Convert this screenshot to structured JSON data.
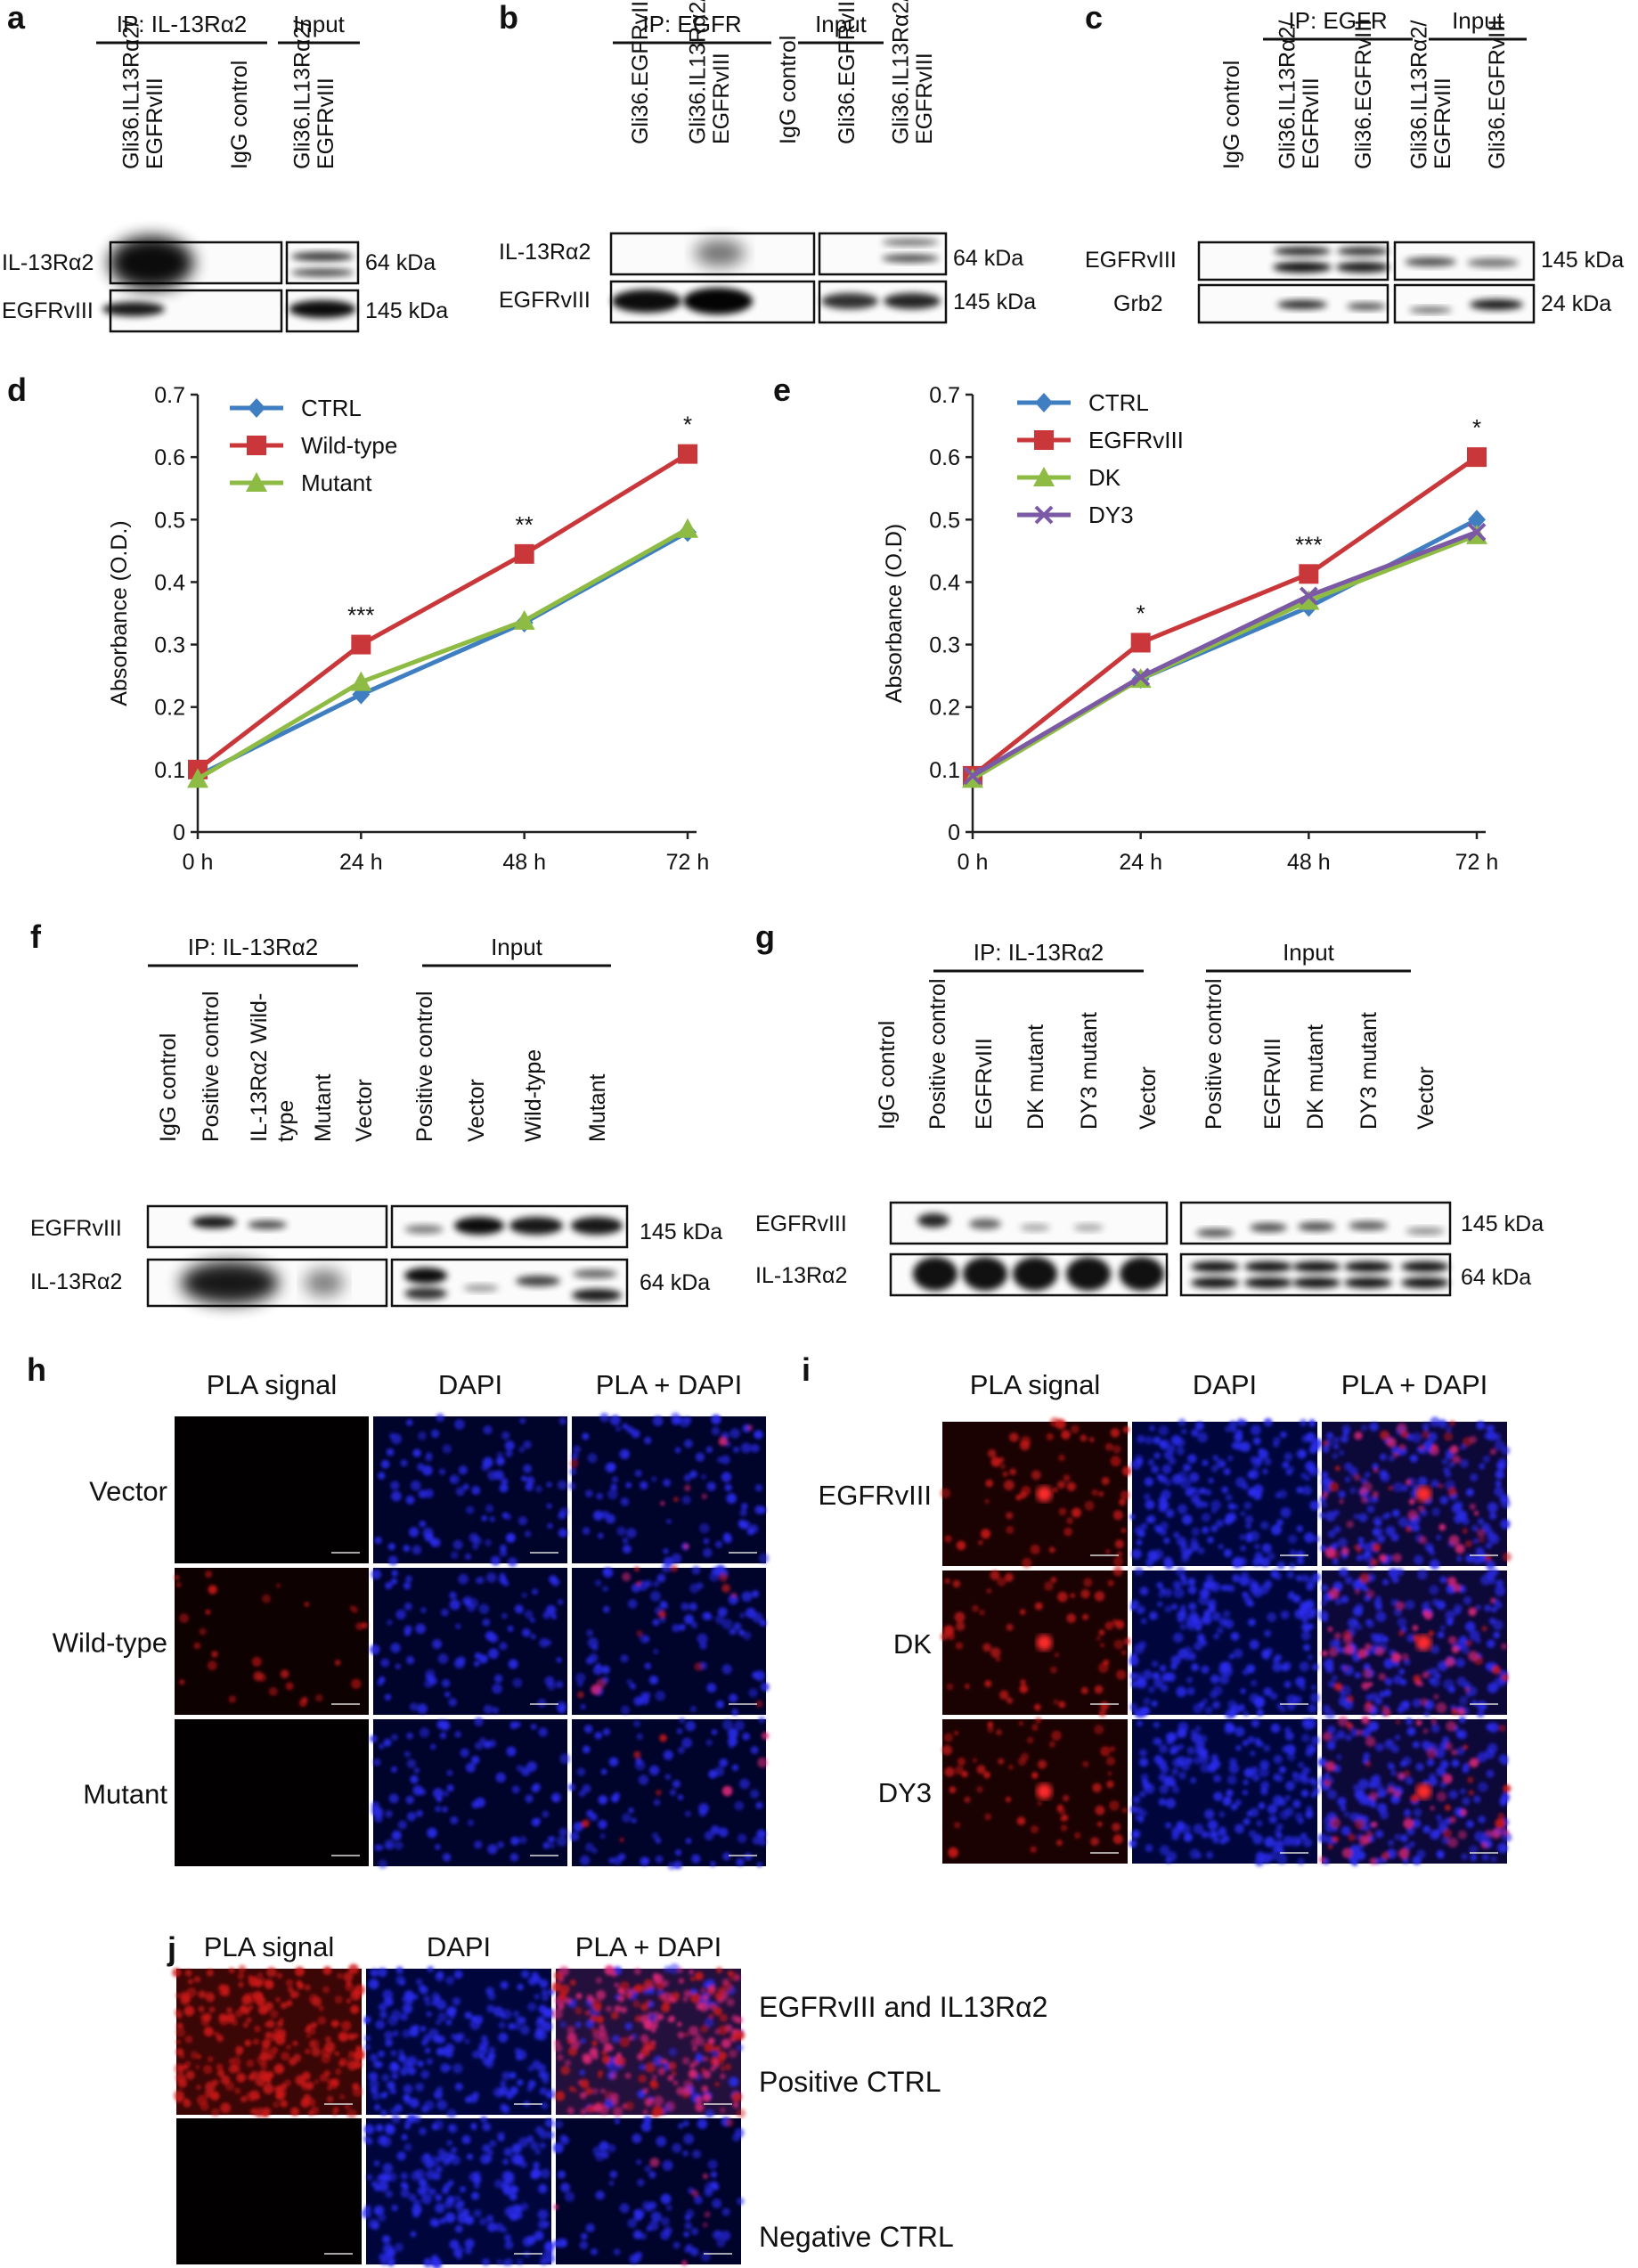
{
  "panels": {
    "a": {
      "letter": "a",
      "ip_label": "IP: IL-13Rα2",
      "input_label": "Input",
      "lanes": [
        "Gli36.IL13Rα2/ EGFRvIII",
        "IgG control",
        "Gli36.IL13Rα2/ EGFRvIII"
      ],
      "rows": [
        "IL-13Rα2",
        "EGFRvIII"
      ],
      "mw": [
        "64 kDa",
        "145 kDa"
      ]
    },
    "b": {
      "letter": "b",
      "ip_label": "IP: EGFR",
      "input_label": "Input",
      "lanes": [
        "Gli36.EGFRvIII",
        "Gli36.IL13Rα2/ EGFRvIII",
        "IgG control",
        "Gli36.EGFRvIII",
        "Gli36.IL13Rα2/ EGFRvIII"
      ],
      "rows": [
        "IL-13Rα2",
        "EGFRvIII"
      ],
      "mw": [
        "64 kDa",
        "145 kDa"
      ]
    },
    "c": {
      "letter": "c",
      "ip_label": "IP: EGFR",
      "input_label": "Input",
      "lanes": [
        "IgG control",
        "Gli36.IL13Rα2/ EGFRvIII",
        "Gli36.EGFRvIII",
        "Gli36.IL13Rα2/ EGFRvIII",
        "Gli36.EGFRvIII"
      ],
      "rows": [
        "EGFRvIII",
        "Grb2"
      ],
      "mw": [
        "145 kDa",
        "24 kDa"
      ]
    },
    "f": {
      "letter": "f",
      "ip_label": "IP: IL-13Rα2",
      "input_label": "Input",
      "lanes": [
        "IgG control",
        "Positive control",
        "IL-13Rα2 Wild-",
        "type",
        "Mutant",
        "Vector",
        "Positive control",
        "Vector",
        "Wild-type",
        "Mutant"
      ],
      "rows": [
        "EGFRvIII",
        "IL-13Rα2"
      ],
      "mw": [
        "145 kDa",
        "64 kDa"
      ]
    },
    "g": {
      "letter": "g",
      "ip_label": "IP: IL-13Rα2",
      "input_label": "Input",
      "lanes": [
        "IgG control",
        "Positive control",
        "EGFRvIII",
        "DK mutant",
        "DY3 mutant",
        "Vector",
        "Positive control",
        "EGFRvIII",
        "DK mutant",
        "DY3 mutant",
        "Vector"
      ],
      "rows": [
        "EGFRvIII",
        "IL-13Rα2"
      ],
      "mw": [
        "145 kDa",
        "64 kDa"
      ]
    },
    "h": {
      "letter": "h",
      "columns": [
        "PLA signal",
        "DAPI",
        "PLA + DAPI"
      ],
      "rows": [
        "Vector",
        "Wild-type",
        "Mutant"
      ]
    },
    "i": {
      "letter": "i",
      "columns": [
        "PLA signal",
        "DAPI",
        "PLA + DAPI"
      ],
      "rows": [
        "EGFRvIII",
        "DK",
        "DY3"
      ]
    },
    "j": {
      "letter": "j",
      "columns": [
        "PLA signal",
        "DAPI",
        "PLA + DAPI"
      ],
      "row_labels": [
        "EGFRvIII and IL13Rα2",
        "Positive CTRL",
        "Negative  CTRL"
      ]
    }
  },
  "chart_data": [
    {
      "panel": "d",
      "type": "line",
      "title": "",
      "xlabel": "",
      "ylabel": "Absorbance (O.D.)",
      "categories": [
        "0 h",
        "24 h",
        "48 h",
        "72 h"
      ],
      "ylim": [
        0,
        0.7
      ],
      "yticks": [
        "0",
        "0.1",
        "0.2",
        "0.3",
        "0.4",
        "0.5",
        "0.6",
        "0.7"
      ],
      "series": [
        {
          "name": "CTRL",
          "color": "#3f7fc1",
          "marker": "diamond",
          "values": [
            0.09,
            0.22,
            0.335,
            0.48
          ]
        },
        {
          "name": "Wild-type",
          "color": "#c9373a",
          "marker": "square",
          "values": [
            0.1,
            0.3,
            0.445,
            0.605
          ]
        },
        {
          "name": "Mutant",
          "color": "#8dbb43",
          "marker": "triangle",
          "values": [
            0.085,
            0.24,
            0.338,
            0.485
          ]
        }
      ],
      "annotations": [
        "",
        "***",
        "**",
        "*"
      ]
    },
    {
      "panel": "e",
      "type": "line",
      "title": "",
      "xlabel": "",
      "ylabel": "Absorbance (O.D)",
      "categories": [
        "0 h",
        "24 h",
        "48 h",
        "72 h"
      ],
      "ylim": [
        0,
        0.7
      ],
      "yticks": [
        "0",
        "0.1",
        "0.2",
        "0.3",
        "0.4",
        "0.5",
        "0.6",
        "0.7"
      ],
      "series": [
        {
          "name": "CTRL",
          "color": "#3f7fc1",
          "marker": "diamond",
          "values": [
            0.09,
            0.245,
            0.36,
            0.5
          ]
        },
        {
          "name": "EGFRvIII",
          "color": "#c9373a",
          "marker": "square",
          "values": [
            0.09,
            0.303,
            0.413,
            0.6
          ]
        },
        {
          "name": "DK",
          "color": "#8dbb43",
          "marker": "triangle",
          "values": [
            0.085,
            0.245,
            0.37,
            0.475
          ]
        },
        {
          "name": "DY3",
          "color": "#7b59a4",
          "marker": "x",
          "values": [
            0.09,
            0.248,
            0.378,
            0.48
          ]
        }
      ],
      "annotations": [
        "",
        "*",
        "***",
        "*"
      ]
    }
  ]
}
